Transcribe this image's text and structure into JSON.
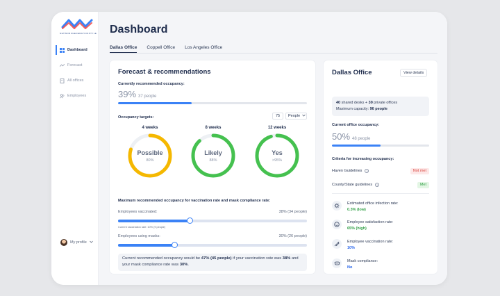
{
  "logo": {
    "text": "NETWORKGENERATIONSTYLE"
  },
  "sidebar": {
    "items": [
      {
        "label": "Dashboard",
        "icon": "grid-icon",
        "active": true
      },
      {
        "label": "Forecast",
        "icon": "trend-icon",
        "active": false
      },
      {
        "label": "All offices",
        "icon": "building-icon",
        "active": false
      },
      {
        "label": "Employees",
        "icon": "people-icon",
        "active": false
      }
    ],
    "profile_label": "My profile"
  },
  "page_title": "Dashboard",
  "tabs": [
    {
      "label": "Dallas Office",
      "active": true
    },
    {
      "label": "Coppell Office",
      "active": false
    },
    {
      "label": "Los Angeles Office",
      "active": false
    }
  ],
  "forecast": {
    "title": "Forecast & recommendations",
    "current_label": "Currently recommended occupancy:",
    "current_pct": "39%",
    "current_people": "37 people",
    "current_fraction": 0.39,
    "targets_label": "Occupancy targets:",
    "targets_value": "75",
    "targets_unit": "People",
    "gauges": [
      {
        "period": "4 weeks",
        "word": "Possible",
        "pct": "80%",
        "fraction": 0.8,
        "color": "#f5b800"
      },
      {
        "period": "8 weeks",
        "word": "Likely",
        "pct": "88%",
        "fraction": 0.88,
        "color": "#45c14f"
      },
      {
        "period": "12 weeks",
        "word": "Yes",
        "pct": ">95%",
        "fraction": 0.95,
        "color": "#45c14f"
      }
    ],
    "max_label": "Maximum recommended occupancy for vaccination rate and mask compliance rate:",
    "vacc_label": "Employees vaccinated:",
    "vacc_value": "38% (34 people)",
    "vacc_fraction": 0.38,
    "vacc_note": "Current vaccination rate: 10% (9 people)",
    "mask_label": "Employees using masks:",
    "mask_value": "30% (26 people)",
    "mask_fraction": 0.3,
    "note_1": "Current recommended occupancy would be ",
    "note_b1": "47% (45 people)",
    "note_2": " if your vaccination rate was ",
    "note_b2": "38%",
    "note_3": " and your mask compliance rate was ",
    "note_b3": "30%",
    "note_4": "."
  },
  "office": {
    "title": "Dallas Office",
    "details_button": "View details",
    "shared_desks": "40",
    "shared_label": " shared desks + ",
    "private_offices": "39",
    "private_label": " private offices",
    "capacity_label": "Maximum capacity: ",
    "capacity_value": "96 people",
    "occupancy_label": "Current office occupancy:",
    "occupancy_pct": "50%",
    "occupancy_people": "48 people",
    "occupancy_fraction": 0.5,
    "criteria_label": "Criteria for increasing occupancy:",
    "criteria": [
      {
        "label": "Haven Guidelines",
        "status": "Not met",
        "ok": false
      },
      {
        "label": "County/State guidelines",
        "status": "Met",
        "ok": true
      }
    ],
    "stats": [
      {
        "icon": "virus-icon",
        "label": "Estimated office infection rate:",
        "value": "0.3% (low)",
        "color": "green"
      },
      {
        "icon": "smile-icon",
        "label": "Employee satisfaction rate:",
        "value": "65% (high)",
        "color": "green"
      },
      {
        "icon": "syringe-icon",
        "label": "Employee vaccination rate:",
        "value": "10%",
        "color": "blue"
      },
      {
        "icon": "mask-icon",
        "label": "Mask compliance:",
        "value": "No",
        "color": "blue"
      }
    ]
  }
}
